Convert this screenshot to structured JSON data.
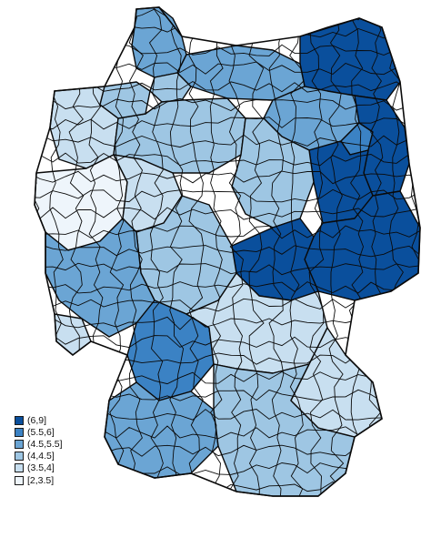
{
  "map": {
    "region": "Germany",
    "units": "districts",
    "outline_color": "#0a0a0a"
  },
  "legend": {
    "placement": "bottom-left",
    "items": [
      {
        "label": "(6,9]",
        "color": "#0a4f9c",
        "class_index": 5
      },
      {
        "label": "(5.5,6]",
        "color": "#3b82c4",
        "class_index": 4
      },
      {
        "label": "(4.5,5.5]",
        "color": "#6ba5d4",
        "class_index": 3
      },
      {
        "label": "(4,4.5]",
        "color": "#9ec6e3",
        "class_index": 2
      },
      {
        "label": "(3.5,4]",
        "color": "#c8dff0",
        "class_index": 1
      },
      {
        "label": "[2,3.5]",
        "color": "#eef5fb",
        "class_index": 0
      }
    ]
  },
  "regions": [
    {
      "id": "schleswig-holstein-north",
      "class_index": 3
    },
    {
      "id": "hamburg",
      "class_index": 2
    },
    {
      "id": "mecklenburg-east",
      "class_index": 5
    },
    {
      "id": "mecklenburg-west",
      "class_index": 3
    },
    {
      "id": "lower-saxony-northwest",
      "class_index": 1
    },
    {
      "id": "lower-saxony-east",
      "class_index": 2
    },
    {
      "id": "bremen",
      "class_index": 2
    },
    {
      "id": "brandenburg-north",
      "class_index": 3
    },
    {
      "id": "berlin",
      "class_index": 4
    },
    {
      "id": "brandenburg-east",
      "class_index": 5
    },
    {
      "id": "brandenburg-south",
      "class_index": 5
    },
    {
      "id": "saxony-anhalt",
      "class_index": 2
    },
    {
      "id": "saxony",
      "class_index": 5
    },
    {
      "id": "thuringia",
      "class_index": 5
    },
    {
      "id": "north-rhine-westphalia-west",
      "class_index": 0
    },
    {
      "id": "north-rhine-westphalia-east",
      "class_index": 1
    },
    {
      "id": "hesse",
      "class_index": 2
    },
    {
      "id": "rhineland-palatinate",
      "class_index": 3
    },
    {
      "id": "saarland",
      "class_index": 1
    },
    {
      "id": "baden-wuerttemberg-north",
      "class_index": 4
    },
    {
      "id": "baden-wuerttemberg-south",
      "class_index": 3
    },
    {
      "id": "bavaria-north",
      "class_index": 1
    },
    {
      "id": "bavaria-south",
      "class_index": 2
    },
    {
      "id": "bavaria-east",
      "class_index": 1
    }
  ]
}
